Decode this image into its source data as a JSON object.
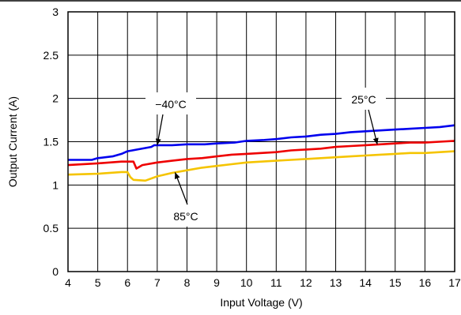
{
  "chart_data": {
    "type": "line",
    "xlabel": "Input Voltage (V)",
    "ylabel": "Output Current (A)",
    "xlim": [
      4,
      17
    ],
    "ylim": [
      0,
      3
    ],
    "x_ticks": [
      "4",
      "5",
      "6",
      "7",
      "8",
      "9",
      "10",
      "11",
      "12",
      "13",
      "14",
      "15",
      "16",
      "17"
    ],
    "y_ticks": [
      "0",
      "0.5",
      "1",
      "1.5",
      "2",
      "2.5",
      "3"
    ],
    "grid": true,
    "series": [
      {
        "name": "−40°C",
        "color": "#0000ee",
        "x": [
          4.0,
          4.8,
          5.0,
          5.5,
          5.8,
          6.0,
          6.8,
          6.9,
          7.5,
          8.0,
          8.6,
          9.0,
          9.6,
          10.0,
          10.6,
          11.0,
          11.5,
          12.0,
          12.5,
          13.0,
          13.5,
          14.0,
          14.5,
          15.0,
          15.5,
          16.0,
          16.5,
          17.0
        ],
        "y": [
          1.29,
          1.29,
          1.31,
          1.33,
          1.36,
          1.39,
          1.44,
          1.46,
          1.46,
          1.47,
          1.47,
          1.48,
          1.49,
          1.51,
          1.52,
          1.53,
          1.55,
          1.56,
          1.58,
          1.59,
          1.61,
          1.62,
          1.63,
          1.64,
          1.65,
          1.66,
          1.67,
          1.69
        ]
      },
      {
        "name": "25°C",
        "color": "#ee0000",
        "x": [
          4.0,
          5.0,
          5.8,
          6.2,
          6.3,
          6.5,
          7.0,
          7.5,
          8.0,
          8.5,
          9.0,
          9.5,
          10.0,
          10.5,
          11.0,
          11.5,
          12.0,
          12.5,
          13.0,
          13.5,
          14.0,
          14.5,
          15.0,
          15.5,
          16.0,
          16.5,
          17.0
        ],
        "y": [
          1.23,
          1.25,
          1.27,
          1.27,
          1.19,
          1.23,
          1.26,
          1.28,
          1.3,
          1.31,
          1.33,
          1.35,
          1.36,
          1.37,
          1.38,
          1.4,
          1.41,
          1.42,
          1.44,
          1.45,
          1.46,
          1.47,
          1.48,
          1.49,
          1.49,
          1.5,
          1.51
        ]
      },
      {
        "name": "85°C",
        "color": "#f5c400",
        "x": [
          4.0,
          5.0,
          5.8,
          6.0,
          6.1,
          6.2,
          6.6,
          7.0,
          7.5,
          8.0,
          8.5,
          9.0,
          9.5,
          10.0,
          10.5,
          11.0,
          11.5,
          12.0,
          12.5,
          13.0,
          13.5,
          14.0,
          14.5,
          15.0,
          15.5,
          16.0,
          16.5,
          17.0
        ],
        "y": [
          1.12,
          1.13,
          1.15,
          1.15,
          1.09,
          1.06,
          1.05,
          1.1,
          1.14,
          1.17,
          1.2,
          1.22,
          1.24,
          1.26,
          1.27,
          1.28,
          1.29,
          1.3,
          1.31,
          1.32,
          1.33,
          1.34,
          1.35,
          1.36,
          1.37,
          1.37,
          1.38,
          1.39
        ]
      }
    ],
    "annotations": [
      {
        "text": "−40°C",
        "series": 0,
        "at_x": 7.0
      },
      {
        "text": "25°C",
        "series": 1,
        "at_x": 14.4
      },
      {
        "text": "85°C",
        "series": 2,
        "at_x": 7.6
      }
    ]
  }
}
